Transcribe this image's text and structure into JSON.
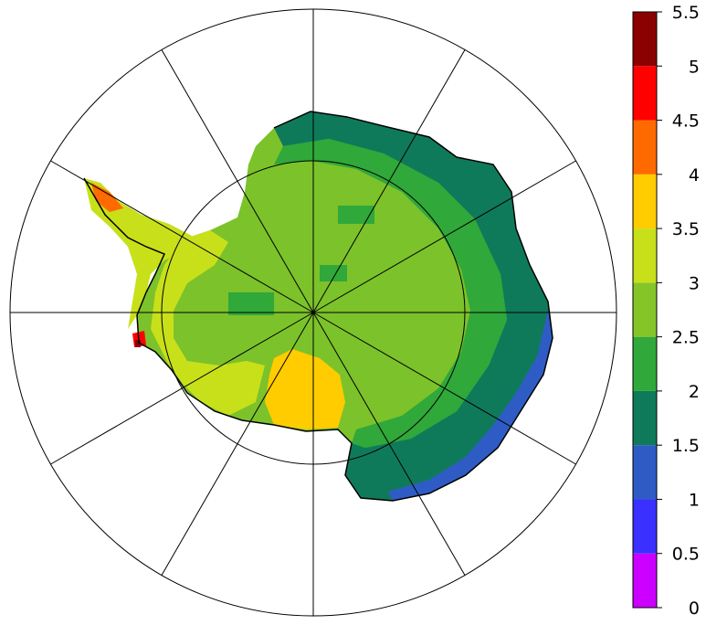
{
  "map": {
    "projection": "south polar stereographic",
    "meridian_count": 12,
    "parallel_rings": 2
  },
  "colorbar": {
    "tick_labels": [
      "5.5",
      "5",
      "4.5",
      "4",
      "3.5",
      "3",
      "2.5",
      "2",
      "1.5",
      "1",
      "0.5",
      "0"
    ],
    "bins": [
      {
        "min": 0,
        "max": 0.5,
        "color": "#cc00ff"
      },
      {
        "min": 0.5,
        "max": 1,
        "color": "#3a30ff"
      },
      {
        "min": 1,
        "max": 1.5,
        "color": "#2f5cc4"
      },
      {
        "min": 1.5,
        "max": 2,
        "color": "#0f7a5a"
      },
      {
        "min": 2,
        "max": 2.5,
        "color": "#30a83a"
      },
      {
        "min": 2.5,
        "max": 3,
        "color": "#86c528"
      },
      {
        "min": 3,
        "max": 3.5,
        "color": "#c8e01a"
      },
      {
        "min": 3.5,
        "max": 4,
        "color": "#ffcc00"
      },
      {
        "min": 4,
        "max": 4.5,
        "color": "#ff6a00"
      },
      {
        "min": 4.5,
        "max": 5,
        "color": "#ff0000"
      },
      {
        "min": 5,
        "max": 5.5,
        "color": "#8b0000"
      }
    ]
  }
}
